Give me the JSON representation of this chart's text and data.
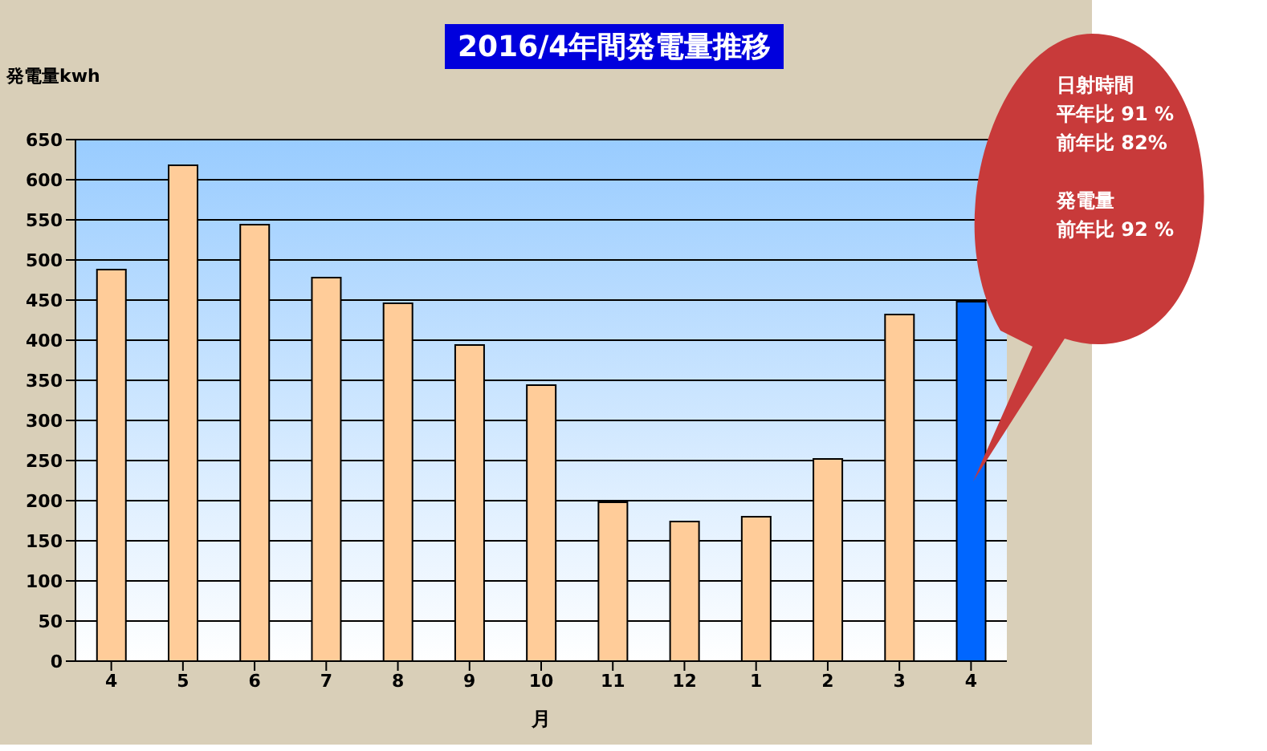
{
  "chart_data": {
    "type": "bar",
    "title": "2016/4年間発電量推移",
    "ylabel": "発電量kwh",
    "xlabel": "月",
    "categories": [
      "4",
      "5",
      "6",
      "7",
      "8",
      "9",
      "10",
      "11",
      "12",
      "1",
      "2",
      "3",
      "4"
    ],
    "values": [
      488,
      618,
      544,
      478,
      446,
      394,
      344,
      198,
      174,
      180,
      252,
      432,
      448
    ],
    "colors": [
      "#ffcc99",
      "#ffcc99",
      "#ffcc99",
      "#ffcc99",
      "#ffcc99",
      "#ffcc99",
      "#ffcc99",
      "#ffcc99",
      "#ffcc99",
      "#ffcc99",
      "#ffcc99",
      "#ffcc99",
      "#0066ff"
    ],
    "ylim": [
      0,
      650
    ],
    "yticks": [
      0,
      50,
      100,
      150,
      200,
      250,
      300,
      350,
      400,
      450,
      500,
      550,
      600,
      650
    ],
    "grid": "y",
    "annotations": [
      "日射時間",
      "平年比 91 %",
      "前年比 82%",
      "発電量",
      "前年比 92 %"
    ]
  }
}
